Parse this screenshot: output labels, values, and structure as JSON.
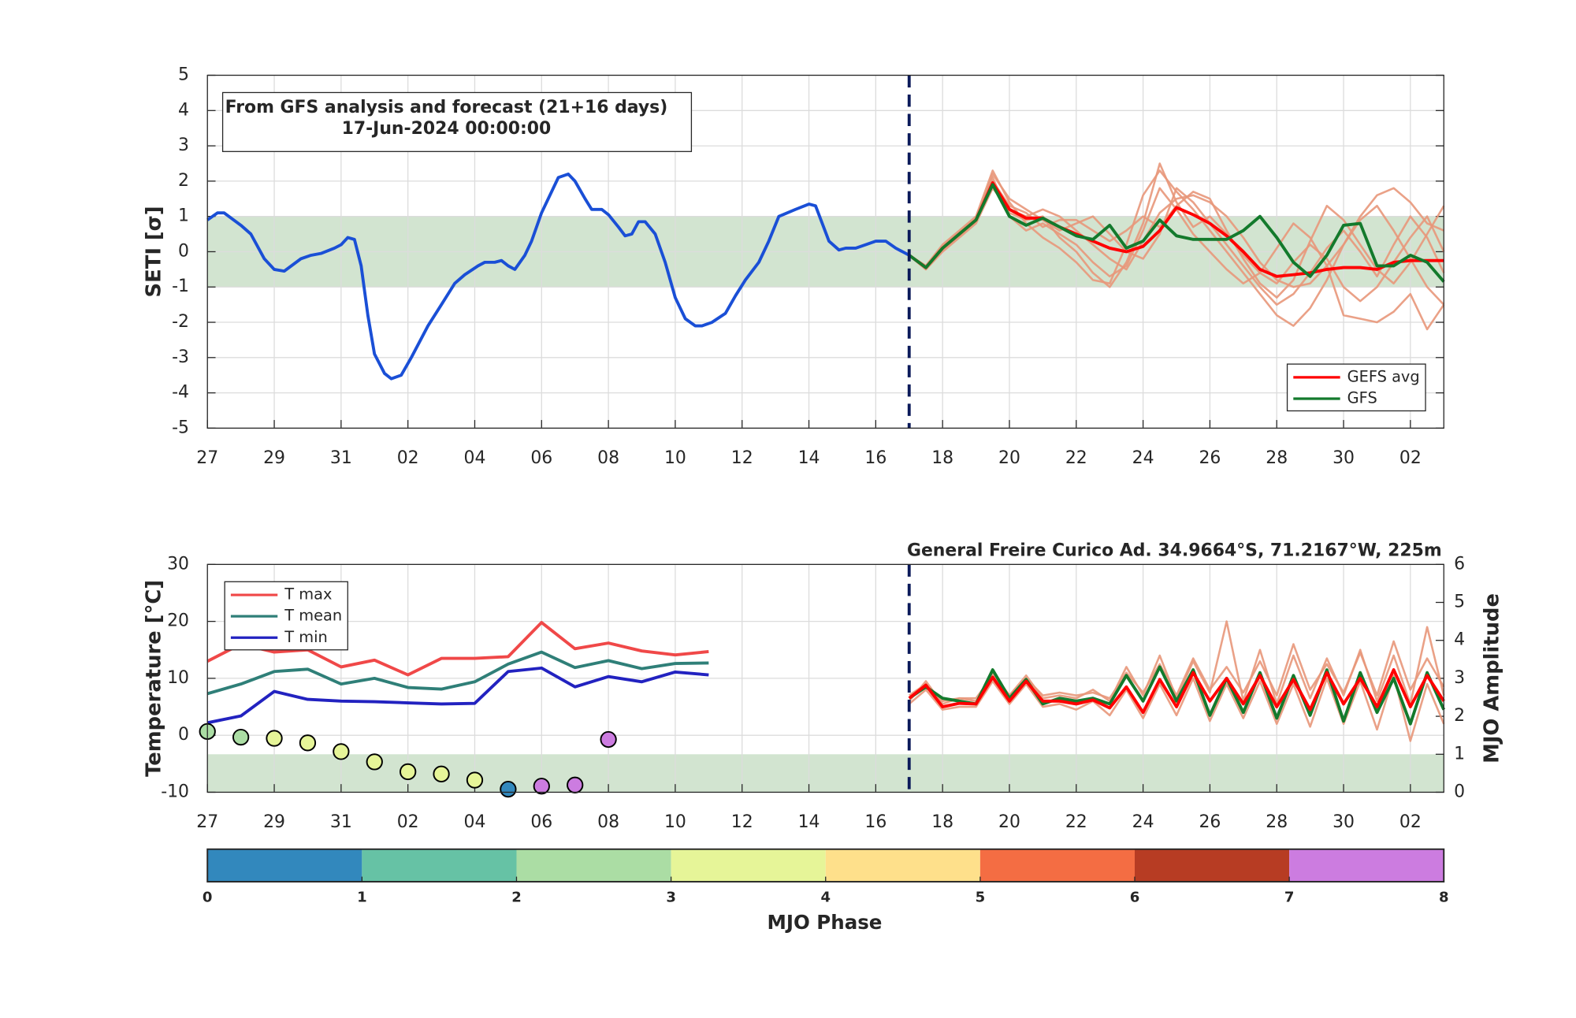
{
  "chart_data": [
    {
      "type": "line",
      "ylabel": "SETI [σ]",
      "annotation": [
        "From GFS analysis and forecast (21+16 days)",
        "17-Jun-2024 00:00:00"
      ],
      "xlim": [
        0,
        37
      ],
      "xticks": [
        {
          "value": 0,
          "label": "27"
        },
        {
          "value": 2,
          "label": "29"
        },
        {
          "value": 4,
          "label": "31"
        },
        {
          "value": 6,
          "label": "02"
        },
        {
          "value": 8,
          "label": "04"
        },
        {
          "value": 10,
          "label": "06"
        },
        {
          "value": 12,
          "label": "08"
        },
        {
          "value": 14,
          "label": "10"
        },
        {
          "value": 16,
          "label": "12"
        },
        {
          "value": 18,
          "label": "14"
        },
        {
          "value": 20,
          "label": "16"
        },
        {
          "value": 22,
          "label": "18"
        },
        {
          "value": 24,
          "label": "20"
        },
        {
          "value": 26,
          "label": "22"
        },
        {
          "value": 28,
          "label": "24"
        },
        {
          "value": 30,
          "label": "26"
        },
        {
          "value": 32,
          "label": "28"
        },
        {
          "value": 34,
          "label": "30"
        },
        {
          "value": 36,
          "label": "02"
        }
      ],
      "ylim": [
        -5,
        5
      ],
      "yticks": [
        -5,
        -4,
        -3,
        -2,
        -1,
        0,
        1,
        2,
        3,
        4,
        5
      ],
      "grid": true,
      "band": {
        "range": [
          -1,
          1
        ],
        "color": "#d2e4d0"
      },
      "forecast_start": 21,
      "legend": "lower right",
      "x": [
        21,
        21.5,
        22,
        22.5,
        23,
        23.5,
        24,
        24.5,
        25,
        25.5,
        26,
        26.5,
        27,
        27.5,
        28,
        28.5,
        29,
        29.5,
        30,
        30.5,
        31,
        31.5,
        32,
        32.5,
        33,
        33.5,
        34,
        34.5,
        35,
        35.5,
        36,
        36.5,
        37
      ],
      "series": [
        {
          "color": "#e8977a",
          "values": [
            -0.1,
            -0.4,
            0.2,
            0.6,
            1.0,
            2.3,
            1.4,
            0.8,
            0.4,
            0.1,
            -0.3,
            -0.8,
            -0.9,
            0.2,
            1.6,
            2.3,
            1.7,
            1.2,
            0.6,
            0.0,
            -0.6,
            -1.2,
            -1.8,
            -2.1,
            -1.6,
            -0.8,
            0.2,
            1.0,
            1.6,
            1.8,
            1.4,
            0.8,
            0.6
          ]
        },
        {
          "color": "#e8977a",
          "values": [
            -0.1,
            -0.5,
            0.0,
            0.4,
            0.8,
            1.8,
            1.2,
            1.0,
            1.2,
            1.0,
            0.6,
            0.2,
            -0.2,
            -0.5,
            0.3,
            1.1,
            1.5,
            1.6,
            1.4,
            1.0,
            0.4,
            -0.3,
            -0.8,
            -1.0,
            -0.9,
            -0.4,
            0.2,
            0.9,
            1.3,
            0.6,
            -0.2,
            -1.0,
            -1.5
          ]
        },
        {
          "color": "#e8977a",
          "values": [
            -0.1,
            -0.45,
            0.1,
            0.5,
            0.9,
            2.1,
            1.0,
            0.6,
            0.8,
            0.5,
            0.2,
            -0.3,
            -0.7,
            -0.4,
            0.6,
            1.8,
            1.2,
            0.5,
            0.0,
            -0.5,
            -0.9,
            -0.6,
            0.1,
            0.8,
            0.4,
            -0.4,
            -1.8,
            -1.9,
            -2.0,
            -1.7,
            -1.2,
            -2.2,
            -1.5
          ]
        },
        {
          "color": "#e8977a",
          "values": [
            -0.1,
            -0.4,
            0.15,
            0.55,
            0.95,
            2.0,
            1.3,
            1.1,
            0.7,
            0.9,
            0.9,
            0.6,
            0.3,
            0.6,
            1.0,
            0.7,
            1.3,
            1.7,
            1.5,
            0.6,
            -0.2,
            -0.9,
            -1.3,
            -0.8,
            0.3,
            1.3,
            0.9,
            0.2,
            -0.5,
            -0.9,
            -0.3,
            0.5,
            1.3
          ]
        },
        {
          "color": "#e8977a",
          "values": [
            -0.1,
            -0.5,
            0.05,
            0.45,
            0.85,
            1.9,
            1.1,
            0.9,
            1.0,
            0.4,
            0.0,
            -0.6,
            -1.0,
            -0.3,
            0.8,
            2.5,
            1.4,
            0.7,
            1.0,
            0.5,
            -0.1,
            -0.6,
            -0.9,
            -0.3,
            0.2,
            -0.2,
            -1.0,
            -1.4,
            -1.0,
            -0.3,
            0.4,
            1.0,
            0.0
          ]
        },
        {
          "color": "#e8977a",
          "values": [
            -0.1,
            -0.45,
            0.1,
            0.5,
            0.9,
            2.2,
            1.5,
            1.2,
            0.9,
            0.6,
            0.8,
            1.0,
            0.5,
            0.0,
            -0.2,
            0.5,
            1.8,
            1.4,
            0.8,
            0.2,
            -0.4,
            -1.0,
            -1.5,
            -1.2,
            -0.6,
            0.1,
            0.6,
            0.0,
            -0.7,
            0.2,
            1.0,
            0.4,
            -0.6
          ]
        },
        {
          "color": "#1a4fd6",
          "x": [
            0,
            0.3,
            0.5,
            1,
            1.3,
            1.7,
            2,
            2.3,
            2.8,
            3.1,
            3.4,
            3.8,
            4,
            4.2,
            4.4,
            4.6,
            4.8,
            5,
            5.3,
            5.5,
            5.8,
            6.1,
            6.6,
            7,
            7.4,
            7.7,
            8.1,
            8.3,
            8.6,
            8.8,
            9,
            9.2,
            9.5,
            9.7,
            10,
            10.3,
            10.5,
            10.8,
            11,
            11.3,
            11.5,
            11.8,
            12,
            12.3,
            12.5,
            12.7,
            12.9,
            13.1,
            13.4,
            13.7,
            14,
            14.3,
            14.6,
            14.8,
            15.1,
            15.5,
            15.8,
            16.1,
            16.5,
            16.8,
            17.1,
            17.6,
            18,
            18.2,
            18.6,
            18.9,
            19.1,
            19.4,
            19.7,
            20,
            20.3,
            20.6,
            21
          ],
          "values": [
            0.9,
            1.1,
            1.1,
            0.75,
            0.5,
            -0.2,
            -0.5,
            -0.55,
            -0.2,
            -0.1,
            -0.05,
            0.1,
            0.2,
            0.4,
            0.35,
            -0.4,
            -1.8,
            -2.9,
            -3.45,
            -3.6,
            -3.5,
            -3.0,
            -2.1,
            -1.5,
            -0.9,
            -0.65,
            -0.4,
            -0.3,
            -0.3,
            -0.25,
            -0.4,
            -0.5,
            -0.1,
            0.3,
            1.1,
            1.7,
            2.1,
            2.2,
            2.0,
            1.5,
            1.2,
            1.2,
            1.05,
            0.7,
            0.45,
            0.5,
            0.85,
            0.85,
            0.5,
            -0.3,
            -1.3,
            -1.9,
            -2.1,
            -2.1,
            -2.0,
            -1.75,
            -1.25,
            -0.8,
            -0.3,
            0.3,
            1.0,
            1.2,
            1.35,
            1.3,
            0.3,
            0.05,
            0.1,
            0.1,
            0.2,
            0.3,
            0.3,
            0.1,
            -0.1
          ]
        },
        {
          "name": "GEFS avg",
          "color": "#ff0000",
          "values": [
            -0.1,
            -0.45,
            0.1,
            0.5,
            0.9,
            1.95,
            1.2,
            0.95,
            0.95,
            0.7,
            0.5,
            0.3,
            0.1,
            0.0,
            0.15,
            0.6,
            1.25,
            1.05,
            0.8,
            0.45,
            0.0,
            -0.5,
            -0.7,
            -0.65,
            -0.6,
            -0.5,
            -0.45,
            -0.45,
            -0.5,
            -0.3,
            -0.25,
            -0.25,
            -0.25
          ]
        },
        {
          "name": "GFS",
          "color": "#137a2c",
          "values": [
            -0.1,
            -0.45,
            0.1,
            0.5,
            0.9,
            1.9,
            1.0,
            0.75,
            0.95,
            0.7,
            0.45,
            0.35,
            0.75,
            0.1,
            0.3,
            0.9,
            0.45,
            0.35,
            0.35,
            0.35,
            0.6,
            1.0,
            0.4,
            -0.3,
            -0.7,
            -0.1,
            0.75,
            0.8,
            -0.4,
            -0.4,
            -0.1,
            -0.3,
            -0.85
          ]
        }
      ]
    },
    {
      "type": "line",
      "title": "General Freire Curico Ad. 34.9664°S, 71.2167°W, 225m",
      "ylabel": "Temperature [°C]",
      "y2label": "MJO Amplitude",
      "xlim": [
        0,
        37
      ],
      "xticks": [
        {
          "value": 0,
          "label": "27"
        },
        {
          "value": 2,
          "label": "29"
        },
        {
          "value": 4,
          "label": "31"
        },
        {
          "value": 6,
          "label": "02"
        },
        {
          "value": 8,
          "label": "04"
        },
        {
          "value": 10,
          "label": "06"
        },
        {
          "value": 12,
          "label": "08"
        },
        {
          "value": 14,
          "label": "10"
        },
        {
          "value": 16,
          "label": "12"
        },
        {
          "value": 18,
          "label": "14"
        },
        {
          "value": 20,
          "label": "16"
        },
        {
          "value": 22,
          "label": "18"
        },
        {
          "value": 24,
          "label": "20"
        },
        {
          "value": 26,
          "label": "22"
        },
        {
          "value": 28,
          "label": "24"
        },
        {
          "value": 30,
          "label": "26"
        },
        {
          "value": 32,
          "label": "28"
        },
        {
          "value": 34,
          "label": "30"
        },
        {
          "value": 36,
          "label": "02"
        }
      ],
      "ylim": [
        -10,
        30
      ],
      "yticks": [
        -10,
        0,
        10,
        20,
        30
      ],
      "y2lim": [
        0,
        6
      ],
      "y2ticks": [
        0,
        1,
        2,
        3,
        4,
        5,
        6
      ],
      "grid": true,
      "band": {
        "range": [
          0,
          1
        ],
        "axis": "y2",
        "color": "#d2e4d0"
      },
      "forecast_start": 21,
      "legend": "upper left",
      "x": [
        21,
        21.5,
        22,
        22.5,
        23,
        23.5,
        24,
        24.5,
        25,
        25.5,
        26,
        26.5,
        27,
        27.5,
        28,
        28.5,
        29,
        29.5,
        30,
        30.5,
        31,
        31.5,
        32,
        32.5,
        33,
        33.5,
        34,
        34.5,
        35,
        35.5,
        36,
        36.5,
        37
      ],
      "series": [
        {
          "color": "#e8977a",
          "values": [
            6.0,
            9.5,
            5.5,
            6.5,
            6.0,
            11.0,
            7.0,
            10.5,
            6.5,
            7.0,
            6.5,
            8.0,
            6.0,
            12.0,
            7.0,
            14.0,
            6.5,
            13.0,
            7.5,
            20.0,
            6.0,
            15.0,
            5.5,
            14.0,
            6.5,
            13.5,
            7.0,
            15.0,
            6.0,
            14.0,
            5.5,
            19.0,
            7.0
          ]
        },
        {
          "color": "#e8977a",
          "values": [
            5.5,
            8.0,
            4.5,
            5.0,
            5.0,
            9.5,
            5.5,
            9.0,
            5.0,
            5.5,
            4.5,
            6.0,
            3.5,
            8.0,
            3.0,
            9.0,
            3.5,
            10.0,
            2.5,
            9.0,
            3.0,
            9.5,
            2.0,
            9.0,
            1.5,
            10.0,
            2.0,
            9.5,
            1.0,
            10.5,
            -1.0,
            9.0,
            2.0
          ]
        },
        {
          "color": "#e8977a",
          "values": [
            7.0,
            9.0,
            6.0,
            6.5,
            6.5,
            10.5,
            7.0,
            10.0,
            7.0,
            7.5,
            7.0,
            7.5,
            6.5,
            11.0,
            7.5,
            12.5,
            7.0,
            13.5,
            8.0,
            12.0,
            7.5,
            13.0,
            7.0,
            16.0,
            8.0,
            12.5,
            7.5,
            14.5,
            7.0,
            16.5,
            8.0,
            13.5,
            8.5
          ]
        },
        {
          "color": "#137a2c",
          "values": [
            6.5,
            8.5,
            6.5,
            6.0,
            5.5,
            11.5,
            6.5,
            9.8,
            5.5,
            6.5,
            6.0,
            6.5,
            5.5,
            10.5,
            6.0,
            12.0,
            6.0,
            11.5,
            3.5,
            10.0,
            4.0,
            11.0,
            3.0,
            10.5,
            3.5,
            11.5,
            2.5,
            11.0,
            4.0,
            10.0,
            2.0,
            11.0,
            4.5
          ]
        },
        {
          "color": "#ff0000",
          "values": [
            6.5,
            8.8,
            5.0,
            5.6,
            5.5,
            10.2,
            6.0,
            9.5,
            6.0,
            6.0,
            5.5,
            6.2,
            4.8,
            8.5,
            4.0,
            9.8,
            5.0,
            11.0,
            6.0,
            10.0,
            5.5,
            10.5,
            5.0,
            9.8,
            4.5,
            11.0,
            5.5,
            10.0,
            5.0,
            11.5,
            5.0,
            10.5,
            6.0
          ]
        },
        {
          "name": "T max",
          "color": "#f04848",
          "x": [
            0,
            1,
            2,
            3,
            4,
            5,
            6,
            7,
            8,
            9,
            10,
            11,
            12,
            13,
            14,
            15
          ],
          "values": [
            13,
            16,
            14.6,
            15,
            12,
            13.2,
            10.6,
            13.5,
            13.5,
            13.8,
            19.8,
            15.2,
            16.2,
            14.8,
            14.1,
            14.7
          ]
        },
        {
          "name": "T mean",
          "color": "#2f7f78",
          "x": [
            0,
            1,
            2,
            3,
            4,
            5,
            6,
            7,
            8,
            9,
            10,
            11,
            12,
            13,
            14,
            15
          ],
          "values": [
            7.3,
            9,
            11.2,
            11.6,
            9,
            10,
            8.4,
            8.1,
            9.4,
            12.5,
            14.6,
            11.9,
            13.1,
            11.7,
            12.6,
            12.7
          ]
        },
        {
          "name": "T min",
          "color": "#2222c0",
          "x": [
            0,
            1,
            2,
            3,
            4,
            5,
            6,
            7,
            8,
            9,
            10,
            11,
            12,
            13,
            14,
            15
          ],
          "values": [
            2.2,
            3.4,
            7.7,
            6.3,
            6,
            5.9,
            5.7,
            5.5,
            5.6,
            11.2,
            11.8,
            8.5,
            10.3,
            9.4,
            11.1,
            10.6
          ]
        }
      ],
      "mjo": {
        "x": [
          0,
          1,
          2,
          3,
          4,
          5,
          6,
          7,
          8,
          9,
          10,
          11,
          12
        ],
        "values": [
          1.6,
          1.45,
          1.42,
          1.3,
          1.07,
          0.8,
          0.54,
          0.48,
          0.32,
          0.08,
          0.16,
          0.19,
          1.39
        ],
        "phases": [
          3,
          3,
          4,
          4,
          4,
          4,
          4,
          4,
          4,
          1,
          8,
          8,
          8
        ]
      }
    },
    {
      "type": "colorbar",
      "label": "MJO Phase",
      "ticks": [
        0,
        1,
        2,
        3,
        4,
        5,
        6,
        7,
        8
      ],
      "colors": [
        "#3288bd",
        "#66c2a5",
        "#abdda4",
        "#e6f598",
        "#fee08b",
        "#f46d43",
        "#b73c23",
        "#cc7ce0"
      ]
    }
  ]
}
